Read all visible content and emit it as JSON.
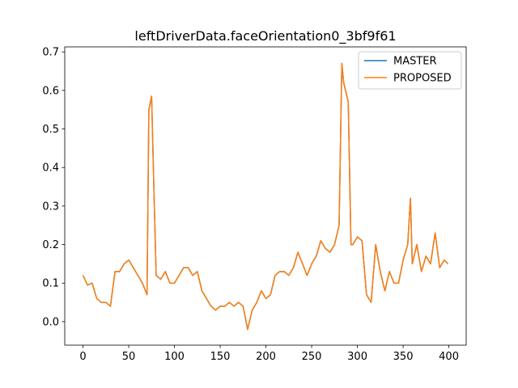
{
  "chart_data": {
    "type": "line",
    "title": "leftDriverData.faceOrientation0_3bf9f61",
    "x": [
      0,
      5,
      10,
      15,
      20,
      25,
      30,
      35,
      40,
      45,
      50,
      55,
      60,
      65,
      70,
      72,
      75,
      78,
      80,
      85,
      90,
      95,
      100,
      105,
      110,
      115,
      120,
      125,
      130,
      135,
      140,
      145,
      150,
      155,
      160,
      165,
      170,
      175,
      180,
      185,
      190,
      195,
      200,
      205,
      210,
      215,
      220,
      225,
      230,
      235,
      240,
      245,
      250,
      255,
      260,
      265,
      270,
      275,
      280,
      283,
      285,
      290,
      293,
      295,
      300,
      305,
      310,
      315,
      320,
      325,
      330,
      335,
      340,
      345,
      350,
      355,
      358,
      360,
      365,
      370,
      375,
      380,
      385,
      390,
      395,
      399
    ],
    "series": [
      {
        "name": "MASTER",
        "color": "#1f77b4",
        "values": [
          0.12,
          0.095,
          0.1,
          0.06,
          0.05,
          0.05,
          0.04,
          0.13,
          0.13,
          0.15,
          0.16,
          0.14,
          0.12,
          0.1,
          0.07,
          0.55,
          0.585,
          0.3,
          0.12,
          0.11,
          0.13,
          0.1,
          0.1,
          0.12,
          0.14,
          0.14,
          0.12,
          0.13,
          0.08,
          0.06,
          0.04,
          0.03,
          0.04,
          0.04,
          0.05,
          0.04,
          0.05,
          0.04,
          -0.02,
          0.03,
          0.05,
          0.08,
          0.06,
          0.07,
          0.12,
          0.13,
          0.13,
          0.12,
          0.14,
          0.18,
          0.15,
          0.12,
          0.15,
          0.17,
          0.21,
          0.19,
          0.18,
          0.2,
          0.25,
          0.67,
          0.62,
          0.57,
          0.2,
          0.2,
          0.22,
          0.21,
          0.07,
          0.05,
          0.2,
          0.13,
          0.08,
          0.13,
          0.1,
          0.1,
          0.16,
          0.2,
          0.32,
          0.15,
          0.2,
          0.13,
          0.17,
          0.15,
          0.23,
          0.14,
          0.16,
          0.15
        ]
      },
      {
        "name": "PROPOSED",
        "color": "#ff7f0e",
        "values": [
          0.12,
          0.095,
          0.1,
          0.06,
          0.05,
          0.05,
          0.04,
          0.13,
          0.13,
          0.15,
          0.16,
          0.14,
          0.12,
          0.1,
          0.07,
          0.55,
          0.585,
          0.3,
          0.12,
          0.11,
          0.13,
          0.1,
          0.1,
          0.12,
          0.14,
          0.14,
          0.12,
          0.13,
          0.08,
          0.06,
          0.04,
          0.03,
          0.04,
          0.04,
          0.05,
          0.04,
          0.05,
          0.04,
          -0.02,
          0.03,
          0.05,
          0.08,
          0.06,
          0.07,
          0.12,
          0.13,
          0.13,
          0.12,
          0.14,
          0.18,
          0.15,
          0.12,
          0.15,
          0.17,
          0.21,
          0.19,
          0.18,
          0.2,
          0.25,
          0.67,
          0.62,
          0.57,
          0.2,
          0.2,
          0.22,
          0.21,
          0.07,
          0.05,
          0.2,
          0.13,
          0.08,
          0.13,
          0.1,
          0.1,
          0.16,
          0.2,
          0.32,
          0.15,
          0.2,
          0.13,
          0.17,
          0.15,
          0.23,
          0.14,
          0.16,
          0.15
        ]
      }
    ],
    "xlim": [
      -19.95,
      418.95
    ],
    "xticks": [
      0,
      50,
      100,
      150,
      200,
      250,
      300,
      350,
      400
    ],
    "ylim": [
      -0.061,
      0.713
    ],
    "yticks": [
      {
        "value": 0,
        "label": "0.0"
      },
      0.1,
      0.2,
      0.3,
      0.4,
      0.5,
      0.6,
      0.7
    ],
    "legend": "upper right"
  }
}
